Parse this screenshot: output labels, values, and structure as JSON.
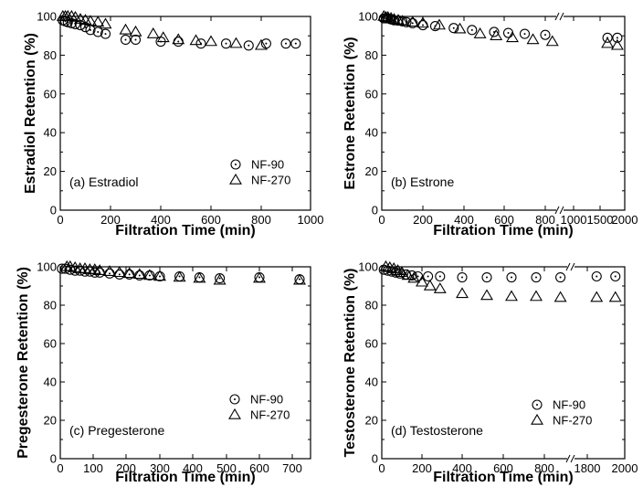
{
  "chart_data": [
    {
      "type": "scatter",
      "panel_label": "(a) Estradiol",
      "xlabel": "Filtration Time (min)",
      "ylabel": "Estradiol Retention (%)",
      "xlim": [
        0,
        1000
      ],
      "ylim": [
        0,
        100
      ],
      "xticks": [
        0,
        200,
        400,
        600,
        800,
        1000
      ],
      "yticks": [
        0,
        20,
        40,
        60,
        80,
        100
      ],
      "legend_position": "bottom-right",
      "series": [
        {
          "name": "NF-90",
          "marker": "circle",
          "x": [
            10,
            20,
            30,
            45,
            60,
            80,
            100,
            120,
            150,
            180,
            260,
            300,
            400,
            470,
            560,
            660,
            750,
            820,
            900,
            940
          ],
          "y": [
            98,
            97.5,
            97,
            96.5,
            96,
            95.5,
            94.5,
            93,
            92,
            91,
            88,
            88,
            87,
            87,
            86,
            86,
            85,
            86,
            86,
            86
          ]
        },
        {
          "name": "NF-270",
          "marker": "triangle",
          "x": [
            10,
            20,
            30,
            45,
            60,
            80,
            100,
            120,
            150,
            180,
            260,
            300,
            370,
            410,
            470,
            540,
            600,
            700,
            800
          ],
          "y": [
            100,
            100,
            100,
            100,
            99.5,
            98.5,
            98,
            97.5,
            97,
            96,
            93,
            92,
            91,
            89,
            88,
            87.5,
            87,
            86,
            85
          ]
        }
      ]
    },
    {
      "type": "scatter",
      "panel_label": "(b) Estrone",
      "xlabel": "Filtration Time (min)",
      "ylabel": "Estrone Retention (%)",
      "ylim": [
        0,
        100
      ],
      "xticks": [
        0,
        200,
        400,
        600,
        800,
        1000,
        1500,
        2000
      ],
      "yticks": [
        0,
        20,
        40,
        60,
        80,
        100
      ],
      "legend_position": "none",
      "axis_break": "between 800 and 1000",
      "series": [
        {
          "name": "NF-90",
          "marker": "circle",
          "x": [
            10,
            20,
            30,
            45,
            60,
            80,
            100,
            120,
            150,
            200,
            260,
            350,
            440,
            550,
            620,
            700,
            800,
            1650,
            1850
          ],
          "y": [
            99,
            99,
            99,
            98.5,
            98,
            98,
            97.5,
            97,
            96.5,
            95.5,
            95,
            94,
            93,
            92,
            91.5,
            91,
            90.5,
            89,
            89
          ]
        },
        {
          "name": "NF-270",
          "marker": "triangle",
          "x": [
            10,
            20,
            30,
            45,
            60,
            80,
            100,
            150,
            200,
            280,
            380,
            480,
            560,
            640,
            740,
            850,
            1650,
            1850
          ],
          "y": [
            100,
            99.5,
            99.5,
            99,
            98.5,
            98,
            97.5,
            97,
            96.5,
            95.5,
            93.5,
            91,
            90,
            89,
            88,
            87,
            86,
            85
          ]
        }
      ]
    },
    {
      "type": "scatter",
      "panel_label": "(c) Pregesterone",
      "xlabel": "Filtration Time (min)",
      "ylabel": "Pregesterone Retention (%)",
      "xlim": [
        0,
        750
      ],
      "ylim": [
        0,
        100
      ],
      "xticks": [
        0,
        100,
        200,
        300,
        400,
        500,
        600,
        700
      ],
      "yticks": [
        0,
        20,
        40,
        60,
        80,
        100
      ],
      "legend_position": "bottom-right",
      "series": [
        {
          "name": "NF-90",
          "marker": "circle",
          "x": [
            5,
            15,
            30,
            45,
            60,
            75,
            90,
            105,
            120,
            150,
            180,
            210,
            240,
            270,
            300,
            360,
            420,
            480,
            600,
            720
          ],
          "y": [
            99,
            99,
            98.5,
            98,
            98,
            97.5,
            97.5,
            97,
            97,
            96.5,
            96,
            96,
            95.5,
            95.5,
            95,
            95,
            94.5,
            94,
            94.5,
            93.5
          ]
        },
        {
          "name": "NF-270",
          "marker": "triangle",
          "x": [
            20,
            30,
            45,
            60,
            75,
            90,
            105,
            120,
            150,
            180,
            210,
            240,
            270,
            300,
            360,
            420,
            480,
            600,
            720
          ],
          "y": [
            100,
            100,
            99.5,
            99,
            99,
            98.5,
            98.5,
            98,
            97.5,
            97,
            96.5,
            96,
            95.5,
            95,
            94.5,
            94,
            93,
            94,
            93
          ]
        }
      ]
    },
    {
      "type": "scatter",
      "panel_label": "(d) Testosterone",
      "xlabel": "Filtration Time (min)",
      "ylabel": "Testosterone Retention (%)",
      "ylim": [
        0,
        100
      ],
      "xticks": [
        0,
        200,
        400,
        600,
        800,
        1800,
        2000
      ],
      "yticks": [
        0,
        20,
        40,
        60,
        80,
        100
      ],
      "legend_position": "bottom-right",
      "axis_break": "between 800 and 1800",
      "series": [
        {
          "name": "NF-90",
          "marker": "circle",
          "x": [
            10,
            30,
            50,
            70,
            90,
            120,
            150,
            180,
            230,
            290,
            400,
            520,
            640,
            760,
            880,
            1850,
            1950
          ],
          "y": [
            98.5,
            98,
            97.5,
            97,
            96.5,
            96,
            95.5,
            95,
            95,
            95,
            94.5,
            94.5,
            94.5,
            94.5,
            94.5,
            95,
            95
          ]
        },
        {
          "name": "NF-270",
          "marker": "triangle",
          "x": [
            20,
            40,
            60,
            80,
            100,
            130,
            160,
            200,
            240,
            290,
            400,
            520,
            640,
            760,
            880,
            1850,
            1950
          ],
          "y": [
            100,
            99.5,
            99,
            98,
            97,
            95.5,
            94,
            92,
            90,
            88.5,
            86,
            85,
            84.5,
            84.5,
            84,
            84,
            84
          ]
        }
      ]
    }
  ]
}
